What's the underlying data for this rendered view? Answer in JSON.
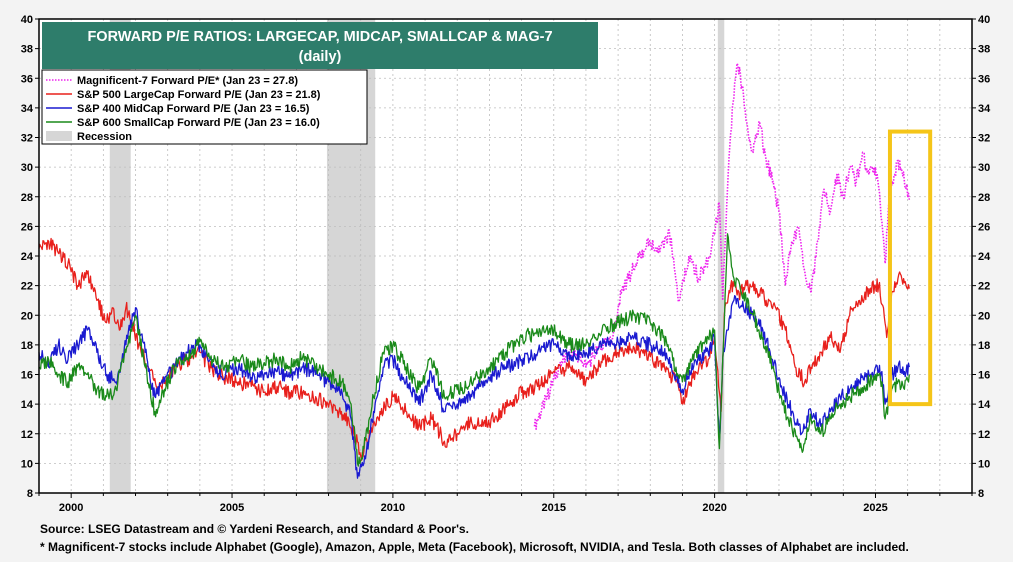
{
  "chart_data": {
    "type": "line",
    "title": "FORWARD P/E RATIOS: LARGECAP, MIDCAP, SMALLCAP & MAG-7",
    "subtitle": "(daily)",
    "x_ticks": [
      "2000",
      "2005",
      "2010",
      "2015",
      "2020",
      "2025"
    ],
    "y_ticks": [
      "8",
      "10",
      "12",
      "14",
      "16",
      "18",
      "20",
      "22",
      "24",
      "26",
      "28",
      "30",
      "32",
      "34",
      "36",
      "38",
      "40"
    ],
    "xlim": [
      1999.0,
      2028.0
    ],
    "ylim": [
      8,
      40
    ],
    "grid": true,
    "legend_position": "top-left",
    "colors": {
      "mag7": "#ee22ee",
      "sp500": "#e8201c",
      "sp400": "#1a1ad0",
      "sp600": "#1a8a1a",
      "recession": "#d6d6d6",
      "title_bg": "#2e7d6b",
      "highlight": "#f5c518"
    },
    "legend": [
      {
        "key": "mag7",
        "label": "Magnificent-7 Forward P/E* (Jan 23 = 27.8)",
        "style": "dotted"
      },
      {
        "key": "sp500",
        "label": "S&P 500 LargeCap Forward P/E (Jan 23 = 21.8)",
        "style": "solid"
      },
      {
        "key": "sp400",
        "label": "S&P 400 MidCap Forward P/E (Jan 23 = 16.5)",
        "style": "solid"
      },
      {
        "key": "sp600",
        "label": "S&P 600 SmallCap Forward P/E (Jan 23 = 16.0)",
        "style": "solid"
      },
      {
        "key": "recession",
        "label": "Recession",
        "style": "box"
      }
    ],
    "recessions": [
      [
        2001.2,
        2001.85
      ],
      [
        2007.95,
        2009.45
      ],
      [
        2020.1,
        2020.3
      ]
    ],
    "highlight_box": {
      "x": [
        2025.45,
        2026.7
      ],
      "y": [
        14.0,
        32.4
      ]
    },
    "series": [
      {
        "key": "mag7",
        "x": [
          2014.4,
          2014.8,
          2015.2,
          2015.6,
          2016.0,
          2016.4,
          2016.8,
          2017.1,
          2017.4,
          2017.7,
          2018.0,
          2018.3,
          2018.6,
          2018.9,
          2019.2,
          2019.5,
          2019.8,
          2020.0,
          2020.15,
          2020.25,
          2020.4,
          2020.55,
          2020.7,
          2020.85,
          2021.0,
          2021.2,
          2021.4,
          2021.6,
          2021.8,
          2022.0,
          2022.2,
          2022.4,
          2022.6,
          2022.8,
          2023.0,
          2023.2,
          2023.4,
          2023.6,
          2023.8,
          2024.0,
          2024.2,
          2024.4,
          2024.6,
          2024.8,
          2025.0,
          2025.15,
          2025.3,
          2025.45,
          2025.6,
          2025.75,
          2025.9,
          2026.05
        ],
        "y": [
          12.5,
          14.5,
          16.8,
          17.5,
          16.5,
          17.8,
          18.2,
          21.5,
          22.8,
          24.0,
          25.0,
          24.3,
          25.5,
          21.0,
          24.0,
          22.5,
          23.8,
          25.5,
          27.5,
          21.0,
          28.5,
          34.0,
          37.0,
          35.5,
          33.0,
          31.0,
          33.0,
          30.5,
          29.0,
          27.0,
          22.0,
          25.0,
          26.0,
          23.0,
          21.5,
          25.0,
          28.5,
          27.0,
          29.5,
          28.0,
          30.0,
          29.0,
          31.0,
          29.5,
          30.0,
          27.5,
          23.5,
          28.5,
          29.5,
          30.5,
          29.0,
          27.8
        ]
      },
      {
        "key": "sp500",
        "x": [
          1999.0,
          1999.3,
          1999.6,
          1999.9,
          2000.2,
          2000.5,
          2000.8,
          2001.1,
          2001.3,
          2001.5,
          2001.7,
          2001.9,
          2002.1,
          2002.4,
          2002.7,
          2003.0,
          2003.3,
          2003.6,
          2004.0,
          2004.4,
          2004.8,
          2005.2,
          2005.6,
          2006.0,
          2006.4,
          2006.8,
          2007.2,
          2007.6,
          2008.0,
          2008.4,
          2008.8,
          2009.0,
          2009.3,
          2009.6,
          2010.0,
          2010.4,
          2010.8,
          2011.2,
          2011.6,
          2012.0,
          2012.4,
          2012.8,
          2013.2,
          2013.6,
          2014.0,
          2014.5,
          2015.0,
          2015.5,
          2016.0,
          2016.5,
          2017.0,
          2017.5,
          2018.0,
          2018.4,
          2018.8,
          2019.0,
          2019.4,
          2019.8,
          2020.0,
          2020.2,
          2020.3,
          2020.5,
          2020.8,
          2021.0,
          2021.3,
          2021.6,
          2021.9,
          2022.2,
          2022.5,
          2022.8,
          2023.0,
          2023.3,
          2023.6,
          2023.9,
          2024.2,
          2024.5,
          2024.8,
          2025.1,
          2025.25,
          2025.35,
          2025.5,
          2025.7,
          2025.9,
          2026.05
        ],
        "y": [
          24.5,
          25.0,
          24.2,
          23.5,
          22.0,
          22.8,
          21.0,
          19.5,
          20.5,
          19.0,
          20.5,
          19.5,
          18.0,
          16.5,
          15.0,
          15.8,
          16.5,
          17.0,
          17.5,
          16.2,
          15.8,
          15.5,
          15.2,
          14.8,
          15.2,
          14.8,
          14.8,
          14.5,
          13.8,
          13.5,
          12.0,
          10.5,
          12.0,
          13.5,
          14.5,
          13.5,
          12.5,
          13.0,
          11.5,
          12.0,
          12.8,
          12.5,
          13.2,
          14.0,
          14.8,
          15.2,
          16.2,
          16.5,
          15.5,
          16.8,
          17.5,
          17.8,
          17.2,
          16.5,
          15.5,
          14.0,
          16.2,
          17.0,
          18.5,
          13.5,
          20.0,
          22.0,
          21.5,
          22.0,
          21.8,
          21.0,
          20.5,
          19.0,
          16.5,
          15.5,
          16.5,
          17.5,
          18.5,
          17.5,
          20.0,
          21.0,
          21.8,
          22.0,
          20.5,
          18.5,
          21.5,
          22.5,
          22.2,
          21.8
        ]
      },
      {
        "key": "sp400",
        "x": [
          1999.0,
          1999.3,
          1999.6,
          1999.9,
          2000.2,
          2000.5,
          2000.8,
          2001.1,
          2001.4,
          2001.7,
          2002.0,
          2002.3,
          2002.6,
          2002.9,
          2003.2,
          2003.6,
          2004.0,
          2004.4,
          2004.8,
          2005.2,
          2005.6,
          2006.0,
          2006.4,
          2006.8,
          2007.2,
          2007.6,
          2008.0,
          2008.4,
          2008.7,
          2008.9,
          2009.1,
          2009.4,
          2009.7,
          2010.0,
          2010.4,
          2010.8,
          2011.2,
          2011.6,
          2012.0,
          2012.5,
          2013.0,
          2013.5,
          2014.0,
          2014.5,
          2015.0,
          2015.5,
          2016.0,
          2016.5,
          2017.0,
          2017.5,
          2018.0,
          2018.4,
          2018.8,
          2019.0,
          2019.4,
          2019.8,
          2020.0,
          2020.15,
          2020.25,
          2020.4,
          2020.6,
          2020.9,
          2021.2,
          2021.5,
          2021.8,
          2022.1,
          2022.4,
          2022.7,
          2023.0,
          2023.3,
          2023.6,
          2023.9,
          2024.2,
          2024.5,
          2024.8,
          2025.0,
          2025.2,
          2025.3,
          2025.5,
          2025.7,
          2025.9,
          2026.05
        ],
        "y": [
          17.5,
          16.5,
          18.0,
          17.0,
          18.0,
          19.0,
          17.5,
          16.0,
          15.5,
          18.0,
          20.5,
          17.5,
          14.5,
          15.5,
          16.5,
          17.5,
          18.0,
          16.5,
          16.0,
          16.5,
          15.8,
          16.0,
          16.2,
          15.8,
          16.5,
          16.0,
          15.5,
          15.0,
          13.0,
          9.0,
          10.0,
          13.5,
          16.5,
          17.0,
          15.5,
          14.0,
          16.0,
          13.5,
          14.0,
          14.8,
          15.8,
          16.5,
          17.0,
          17.5,
          18.0,
          17.0,
          17.5,
          18.0,
          18.2,
          18.5,
          18.0,
          17.5,
          16.0,
          15.0,
          17.0,
          17.5,
          18.5,
          11.5,
          17.0,
          19.0,
          21.0,
          20.5,
          20.0,
          19.0,
          17.0,
          15.0,
          13.5,
          12.0,
          13.5,
          12.5,
          13.5,
          14.5,
          15.0,
          15.5,
          16.0,
          16.5,
          16.2,
          14.0,
          16.0,
          16.5,
          16.2,
          16.5
        ]
      },
      {
        "key": "sp600",
        "x": [
          1999.0,
          1999.3,
          1999.6,
          1999.9,
          2000.2,
          2000.5,
          2000.8,
          2001.1,
          2001.4,
          2001.7,
          2002.0,
          2002.3,
          2002.6,
          2002.9,
          2003.2,
          2003.6,
          2004.0,
          2004.4,
          2004.8,
          2005.2,
          2005.6,
          2006.0,
          2006.4,
          2006.8,
          2007.2,
          2007.6,
          2008.0,
          2008.4,
          2008.7,
          2008.9,
          2009.1,
          2009.4,
          2009.7,
          2010.0,
          2010.4,
          2010.8,
          2011.2,
          2011.6,
          2012.0,
          2012.5,
          2013.0,
          2013.5,
          2014.0,
          2014.5,
          2015.0,
          2015.5,
          2016.0,
          2016.5,
          2017.0,
          2017.5,
          2018.0,
          2018.4,
          2018.8,
          2019.0,
          2019.4,
          2019.8,
          2020.0,
          2020.15,
          2020.25,
          2020.4,
          2020.6,
          2020.9,
          2021.2,
          2021.5,
          2021.8,
          2022.1,
          2022.4,
          2022.7,
          2023.0,
          2023.3,
          2023.6,
          2023.9,
          2024.2,
          2024.5,
          2024.8,
          2025.0,
          2025.2,
          2025.3,
          2025.5,
          2025.7,
          2025.9,
          2026.05
        ],
        "y": [
          16.5,
          17.0,
          16.0,
          15.5,
          16.5,
          16.0,
          15.0,
          14.5,
          15.0,
          17.5,
          20.0,
          16.5,
          13.5,
          15.0,
          16.5,
          17.0,
          18.2,
          17.0,
          16.5,
          17.0,
          16.5,
          16.8,
          17.0,
          16.5,
          17.2,
          16.5,
          16.0,
          15.5,
          14.0,
          10.0,
          11.0,
          14.5,
          17.5,
          18.0,
          16.5,
          15.0,
          17.0,
          14.5,
          15.0,
          15.5,
          16.5,
          17.5,
          18.5,
          18.8,
          19.0,
          18.0,
          18.0,
          19.0,
          19.5,
          20.0,
          19.5,
          18.5,
          16.5,
          15.5,
          17.5,
          18.5,
          19.0,
          11.0,
          17.0,
          25.5,
          22.5,
          21.5,
          20.0,
          18.5,
          16.5,
          14.0,
          12.5,
          11.0,
          13.0,
          12.0,
          13.0,
          14.0,
          14.5,
          15.0,
          15.5,
          16.0,
          15.5,
          13.0,
          15.0,
          15.5,
          15.0,
          16.0
        ]
      }
    ]
  },
  "notes": {
    "source": "Source: LSEG Datastream and © Yardeni Research, and Standard & Poor's.",
    "footnote": "* Magnificent-7 stocks include Alphabet (Google), Amazon, Apple, Meta (Facebook), Microsoft, NVIDIA, and Tesla. Both classes of Alphabet are included."
  }
}
